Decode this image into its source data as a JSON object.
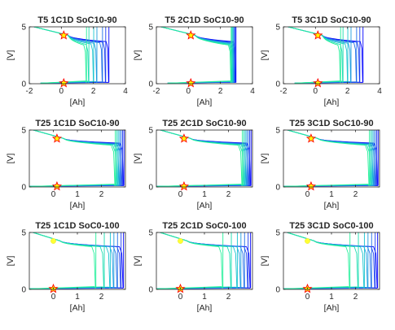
{
  "chart_data": [
    {
      "type": "line",
      "title": "T5 1C1D SoC10-90",
      "xlabel": "[Ah]",
      "ylabel": "[V]",
      "xlim": [
        -2,
        4
      ],
      "ylim": [
        0,
        5
      ],
      "xticks": [
        "-2",
        "0",
        "2",
        "4"
      ],
      "yticks": [
        "0",
        "5"
      ],
      "family": "wide",
      "marker_x": 0.15,
      "upper_color": "#ffff00"
    },
    {
      "type": "line",
      "title": "T5 2C1D SoC10-90",
      "xlabel": "[Ah]",
      "ylabel": "[V]",
      "xlim": [
        -2,
        4
      ],
      "ylim": [
        0,
        5
      ],
      "xticks": [
        "-2",
        "0",
        "2",
        "4"
      ],
      "yticks": [
        "0",
        "5"
      ],
      "family": "tight",
      "marker_x": 0.15,
      "upper_color": "#ffff00"
    },
    {
      "type": "line",
      "title": "T5 3C1D SoC10-90",
      "xlabel": "[Ah]",
      "ylabel": "[V]",
      "xlim": [
        -2,
        4
      ],
      "ylim": [
        0,
        5
      ],
      "xticks": [
        "-2",
        "0",
        "2",
        "4"
      ],
      "yticks": [
        "0",
        "5"
      ],
      "family": "wide",
      "marker_x": 0.15,
      "upper_color": "#ffff00"
    },
    {
      "type": "line",
      "title": "T25 1C1D SoC10-90",
      "xlabel": "[Ah]",
      "ylabel": "[V]",
      "xlim": [
        -1,
        3
      ],
      "ylim": [
        0,
        5
      ],
      "xticks": [
        "0",
        "1",
        "2"
      ],
      "yticks": [
        "0",
        "5"
      ],
      "family": "right",
      "marker_x": 0.15,
      "upper_color": "#ffff00"
    },
    {
      "type": "line",
      "title": "T25 2C1D SoC10-90",
      "xlabel": "[Ah]",
      "ylabel": "[V]",
      "xlim": [
        -1,
        3
      ],
      "ylim": [
        0,
        5
      ],
      "xticks": [
        "0",
        "1",
        "2"
      ],
      "yticks": [
        "0",
        "5"
      ],
      "family": "right",
      "marker_x": 0.15,
      "upper_color": "#ffff00"
    },
    {
      "type": "line",
      "title": "T25 3C1D SoC10-90",
      "xlabel": "[Ah]",
      "ylabel": "[V]",
      "xlim": [
        -1,
        3
      ],
      "ylim": [
        0,
        5
      ],
      "xticks": [
        "0",
        "1",
        "2"
      ],
      "yticks": [
        "0",
        "5"
      ],
      "family": "right",
      "marker_x": 0.15,
      "upper_color": "#ffff00"
    },
    {
      "type": "line",
      "title": "T25 1C1D SoC0-100",
      "xlabel": "[Ah]",
      "ylabel": "[V]",
      "xlim": [
        -1,
        3
      ],
      "ylim": [
        0,
        5
      ],
      "xticks": [
        "0",
        "1",
        "2"
      ],
      "yticks": [
        "0",
        "5"
      ],
      "family": "spread",
      "marker_x": 0.0,
      "upper_color": "#ffff33"
    },
    {
      "type": "line",
      "title": "T25 2C1D SoC0-100",
      "xlabel": "[Ah]",
      "ylabel": "[V]",
      "xlim": [
        -1,
        3
      ],
      "ylim": [
        0,
        5
      ],
      "xticks": [
        "0",
        "1",
        "2"
      ],
      "yticks": [
        "0",
        "5"
      ],
      "family": "spread",
      "marker_x": 0.0,
      "upper_color": "#ffff33"
    },
    {
      "type": "line",
      "title": "T25 3C1D SoC0-100",
      "xlabel": "[Ah]",
      "ylabel": "[V]",
      "xlim": [
        -1,
        3
      ],
      "ylim": [
        0,
        5
      ],
      "xticks": [
        "0",
        "1",
        "2"
      ],
      "yticks": [
        "0",
        "5"
      ],
      "family": "spread",
      "marker_x": 0.0,
      "upper_color": "#ffff33"
    }
  ],
  "colors": {
    "cool": [
      "#0000ff",
      "#1a3cf0",
      "#1f6ee8",
      "#1e9ce0",
      "#19c4cf",
      "#17ddb0",
      "#22f09a"
    ],
    "marker": "#ff0000",
    "marker_fill": "#ffff00",
    "axis": "#262626"
  }
}
